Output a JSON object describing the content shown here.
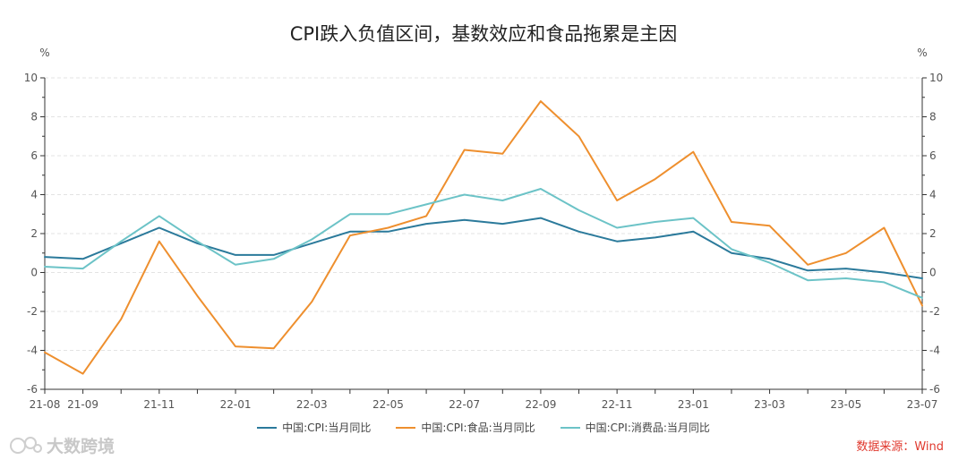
{
  "chart_data": {
    "type": "line",
    "title": "CPI跌入负值区间，基数效应和食品拖累是主因",
    "y_unit_left": "%",
    "y_unit_right": "%",
    "ylim": [
      -6,
      10
    ],
    "yticks": [
      -6,
      -4,
      -2,
      0,
      2,
      4,
      6,
      8,
      10
    ],
    "categories": [
      "21-08",
      "21-09",
      "21-10",
      "21-11",
      "21-12",
      "22-01",
      "22-02",
      "22-03",
      "22-04",
      "22-05",
      "22-06",
      "22-07",
      "22-08",
      "22-09",
      "22-10",
      "22-11",
      "22-12",
      "23-01",
      "23-02",
      "23-03",
      "23-04",
      "23-05",
      "23-06",
      "23-07"
    ],
    "x_tick_labels": [
      "21-08",
      "21-09",
      "21-11",
      "22-01",
      "22-03",
      "22-05",
      "22-07",
      "22-09",
      "22-11",
      "23-01",
      "23-03",
      "23-05",
      "23-07"
    ],
    "series": [
      {
        "name": "中国:CPI:当月同比",
        "color": "#2b7a9b",
        "values": [
          0.8,
          0.7,
          1.5,
          2.3,
          1.5,
          0.9,
          0.9,
          1.5,
          2.1,
          2.1,
          2.5,
          2.7,
          2.5,
          2.8,
          2.1,
          1.6,
          1.8,
          2.1,
          1.0,
          0.7,
          0.1,
          0.2,
          0.0,
          -0.3
        ]
      },
      {
        "name": "中国:CPI:食品:当月同比",
        "color": "#ee8f2e",
        "values": [
          -4.1,
          -5.2,
          -2.4,
          1.6,
          -1.2,
          -3.8,
          -3.9,
          -1.5,
          1.9,
          2.3,
          2.9,
          6.3,
          6.1,
          8.8,
          7.0,
          3.7,
          4.8,
          6.2,
          2.6,
          2.4,
          0.4,
          1.0,
          2.3,
          -1.7
        ]
      },
      {
        "name": "中国:CPI:消费品:当月同比",
        "color": "#6cc3c7",
        "values": [
          0.3,
          0.2,
          1.6,
          2.9,
          1.6,
          0.4,
          0.7,
          1.7,
          3.0,
          3.0,
          3.5,
          4.0,
          3.7,
          4.3,
          3.2,
          2.3,
          2.6,
          2.8,
          1.2,
          0.5,
          -0.4,
          -0.3,
          -0.5,
          -1.3
        ]
      }
    ],
    "grid": true,
    "legend_position": "bottom-center"
  },
  "source": "数据来源：Wind",
  "watermark": "大数跨境"
}
